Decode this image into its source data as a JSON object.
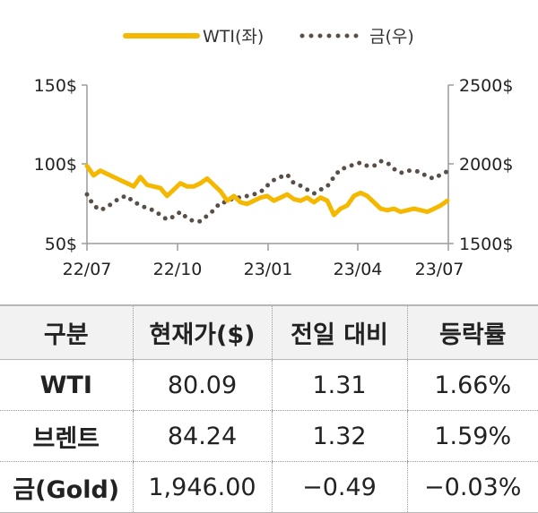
{
  "chart_data": {
    "type": "line",
    "legend": {
      "position": "top",
      "items": [
        {
          "label": "WTI(좌)",
          "color": "#f5b800",
          "style": "solid"
        },
        {
          "label": "금(우)",
          "color": "#5a4f47",
          "style": "dotted"
        }
      ]
    },
    "x_ticks": [
      "22/07",
      "22/10",
      "23/01",
      "23/04",
      "23/07"
    ],
    "y_left": {
      "ticks": [
        "150$",
        "100$",
        "50$"
      ],
      "ylim": [
        50,
        150
      ]
    },
    "y_right": {
      "ticks": [
        "2500$",
        "2000$",
        "1500$"
      ],
      "ylim": [
        1500,
        2500
      ]
    },
    "grid": false,
    "series": [
      {
        "name": "WTI(좌)",
        "axis": "left",
        "color": "#f5b800",
        "x": [
          "2022-07-01",
          "2022-07-08",
          "2022-07-15",
          "2022-07-22",
          "2022-07-29",
          "2022-08-05",
          "2022-08-12",
          "2022-08-19",
          "2022-08-26",
          "2022-09-02",
          "2022-09-09",
          "2022-09-16",
          "2022-09-23",
          "2022-09-30",
          "2022-10-07",
          "2022-10-14",
          "2022-10-21",
          "2022-10-28",
          "2022-11-04",
          "2022-11-11",
          "2022-11-18",
          "2022-11-25",
          "2022-12-02",
          "2022-12-09",
          "2022-12-16",
          "2022-12-23",
          "2022-12-30",
          "2023-01-06",
          "2023-01-13",
          "2023-01-20",
          "2023-01-27",
          "2023-02-03",
          "2023-02-10",
          "2023-02-17",
          "2023-02-24",
          "2023-03-03",
          "2023-03-10",
          "2023-03-17",
          "2023-03-24",
          "2023-03-31",
          "2023-04-07",
          "2023-04-14",
          "2023-04-21",
          "2023-04-28",
          "2023-05-05",
          "2023-05-12",
          "2023-05-19",
          "2023-05-26",
          "2023-06-02",
          "2023-06-09",
          "2023-06-16",
          "2023-06-23",
          "2023-06-30",
          "2023-07-07",
          "2023-07-14"
        ],
        "values": [
          99,
          93,
          96,
          94,
          92,
          90,
          88,
          86,
          92,
          87,
          86,
          85,
          80,
          84,
          88,
          86,
          86,
          88,
          91,
          87,
          83,
          77,
          80,
          76,
          75,
          77,
          79,
          80,
          77,
          79,
          81,
          78,
          77,
          79,
          76,
          79,
          77,
          68,
          72,
          74,
          80,
          82,
          80,
          76,
          72,
          71,
          72,
          70,
          71,
          72,
          71,
          70,
          72,
          74,
          77
        ]
      },
      {
        "name": "금(우)",
        "axis": "right",
        "color": "#5a4f47",
        "x": [
          "2022-07-01",
          "2022-07-08",
          "2022-07-15",
          "2022-07-22",
          "2022-07-29",
          "2022-08-05",
          "2022-08-12",
          "2022-08-19",
          "2022-08-26",
          "2022-09-02",
          "2022-09-09",
          "2022-09-16",
          "2022-09-23",
          "2022-09-30",
          "2022-10-07",
          "2022-10-14",
          "2022-10-21",
          "2022-10-28",
          "2022-11-04",
          "2022-11-11",
          "2022-11-18",
          "2022-11-25",
          "2022-12-02",
          "2022-12-09",
          "2022-12-16",
          "2022-12-23",
          "2022-12-30",
          "2023-01-06",
          "2023-01-13",
          "2023-01-20",
          "2023-01-27",
          "2023-02-03",
          "2023-02-10",
          "2023-02-17",
          "2023-02-24",
          "2023-03-03",
          "2023-03-10",
          "2023-03-17",
          "2023-03-24",
          "2023-03-31",
          "2023-04-07",
          "2023-04-14",
          "2023-04-21",
          "2023-04-28",
          "2023-05-05",
          "2023-05-12",
          "2023-05-19",
          "2023-05-26",
          "2023-06-02",
          "2023-06-09",
          "2023-06-16",
          "2023-06-23",
          "2023-06-30",
          "2023-07-07",
          "2023-07-14"
        ],
        "values": [
          1810,
          1740,
          1710,
          1730,
          1760,
          1790,
          1800,
          1760,
          1745,
          1720,
          1710,
          1680,
          1650,
          1670,
          1700,
          1660,
          1640,
          1640,
          1675,
          1710,
          1760,
          1760,
          1790,
          1790,
          1800,
          1810,
          1825,
          1865,
          1900,
          1920,
          1935,
          1880,
          1865,
          1840,
          1815,
          1840,
          1860,
          1920,
          1970,
          1980,
          2000,
          2010,
          1990,
          1990,
          2020,
          2010,
          1970,
          1945,
          1960,
          1960,
          1950,
          1920,
          1910,
          1935,
          1955
        ]
      }
    ]
  },
  "table": {
    "headers": [
      "구분",
      "현재가($)",
      "전일 대비",
      "등락률"
    ],
    "rows": [
      {
        "name": "WTI",
        "price": "80.09",
        "change": "1.31",
        "rate": "1.66%"
      },
      {
        "name": "브렌트",
        "price": "84.24",
        "change": "1.32",
        "rate": "1.59%"
      },
      {
        "name": "금(Gold)",
        "price": "1,946.00",
        "change": "−0.49",
        "rate": "−0.03%"
      }
    ]
  }
}
